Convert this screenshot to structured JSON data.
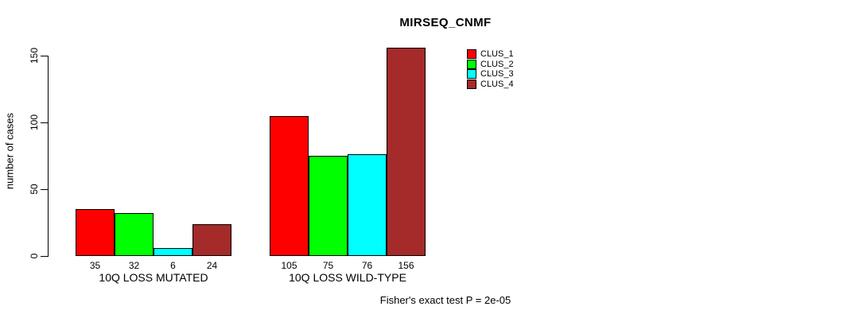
{
  "chart_data": {
    "type": "bar",
    "title": "MIRSEQ_CNMF",
    "ylabel": "number of cases",
    "xlabel": "",
    "categories": [
      "10Q LOSS MUTATED",
      "10Q LOSS WILD-TYPE"
    ],
    "series": [
      {
        "name": "CLUS_1",
        "color": "#FF0000",
        "values": [
          35,
          105
        ]
      },
      {
        "name": "CLUS_2",
        "color": "#00FF00",
        "values": [
          32,
          75
        ]
      },
      {
        "name": "CLUS_3",
        "color": "#00FFFF",
        "values": [
          6,
          76
        ]
      },
      {
        "name": "CLUS_4",
        "color": "#A52A2A",
        "values": [
          24,
          156
        ]
      }
    ],
    "yticks": [
      0,
      50,
      100,
      150
    ],
    "ylim": [
      0,
      160
    ],
    "grid": false,
    "bar_value_labels": true,
    "legend_position": "top-right-inside",
    "annotation": "Fisher's exact test P = 2e-05",
    "axis_color": "#000000",
    "bar_border_color": "#000000"
  }
}
